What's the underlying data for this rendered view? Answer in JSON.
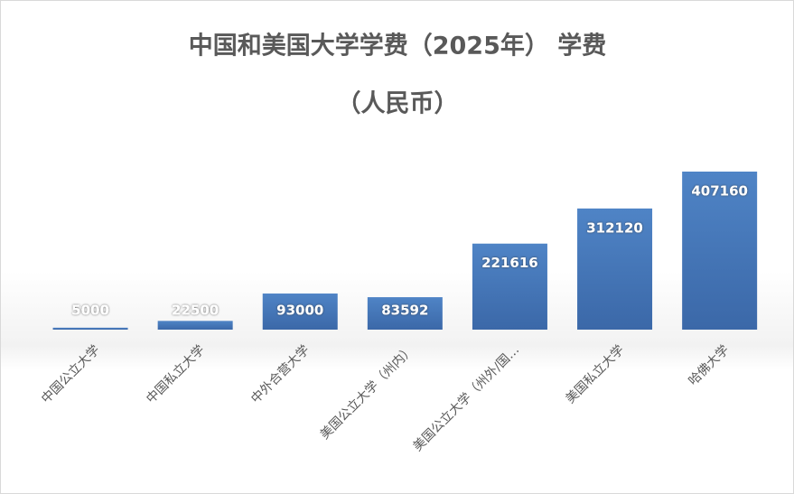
{
  "chart_data": {
    "type": "bar",
    "title": [
      "中国和美国大学学费（2025年） 学费",
      "（人民币）"
    ],
    "categories": [
      "中国公立大学",
      "中国私立大学",
      "中外合营大学",
      "美国公立大学（州内）",
      "美国公立大学（州外/国…",
      "美国私立大学",
      "哈佛大学"
    ],
    "values": [
      5000,
      22500,
      93000,
      83592,
      221616,
      312120,
      407160
    ],
    "color": "#4477bb"
  }
}
